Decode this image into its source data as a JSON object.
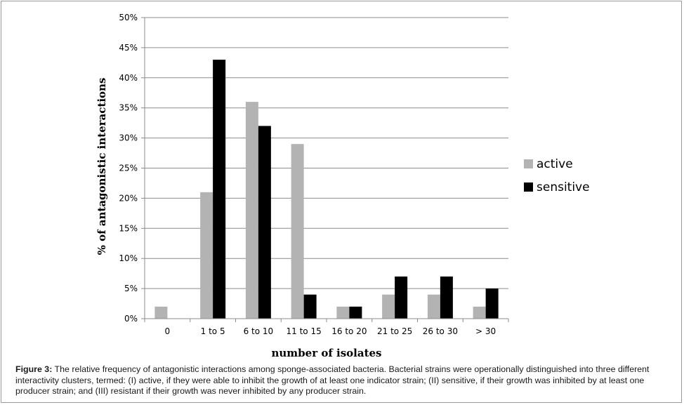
{
  "chart_data": {
    "type": "bar",
    "title": "",
    "xlabel": "number of isolates",
    "ylabel": "% of antagonistic interactions",
    "categories": [
      "0",
      "1 to 5",
      "6 to 10",
      "11 to 15",
      "16 to 20",
      "21 to 25",
      "26 to 30",
      "> 30"
    ],
    "series": [
      {
        "name": "active",
        "values": [
          2,
          21,
          36,
          29,
          2,
          4,
          4,
          2
        ],
        "color": "#b3b3b3"
      },
      {
        "name": "sensitive",
        "values": [
          0,
          43,
          32,
          4,
          2,
          7,
          7,
          5
        ],
        "color": "#000000"
      }
    ],
    "ylim": [
      0,
      50
    ],
    "yticks": [
      "0%",
      "5%",
      "10%",
      "15%",
      "20%",
      "25%",
      "30%",
      "35%",
      "40%",
      "45%",
      "50%"
    ],
    "grid": true,
    "legend_position": "right"
  },
  "caption": {
    "label": "Figure 3:",
    "text": "The relative frequency of antagonistic interactions among sponge-associated bacteria. Bacterial strains were operationally distinguished into three different interactivity clusters, termed: (I) active, if they were able to inhibit the growth of at least one indicator strain; (II) sensitive, if their growth was inhibited by at least one producer strain; and (III) resistant if their growth was never inhibited by any producer strain."
  }
}
